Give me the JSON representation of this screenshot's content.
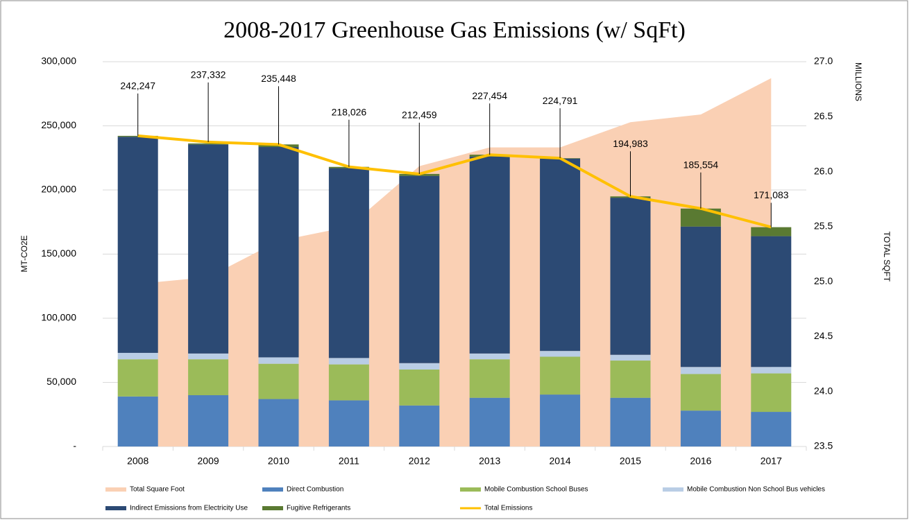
{
  "chart_data": {
    "type": "bar",
    "title": "2008-2017 Greenhouse Gas Emissions (w/ SqFt)",
    "y_axis_label": "MT-CO2E",
    "y2_axis_label": "TOTAL SQFT",
    "y2_unit_label": "MILLIONS",
    "categories": [
      "2008",
      "2009",
      "2010",
      "2011",
      "2012",
      "2013",
      "2014",
      "2015",
      "2016",
      "2017"
    ],
    "ylim": [
      0,
      300000
    ],
    "yticks": [
      {
        "value": 0,
        "label": "-"
      },
      {
        "value": 50000,
        "label": "50,000"
      },
      {
        "value": 100000,
        "label": "100,000"
      },
      {
        "value": 150000,
        "label": "150,000"
      },
      {
        "value": 200000,
        "label": "200,000"
      },
      {
        "value": 250000,
        "label": "250,000"
      },
      {
        "value": 300000,
        "label": "300,000"
      }
    ],
    "y2lim": [
      23.5,
      27.0
    ],
    "y2ticks": [
      23.5,
      {
        "value": 24,
        "label": "24.0"
      },
      24.5,
      {
        "value": 25,
        "label": "25.0"
      },
      25.5,
      {
        "value": 26,
        "label": "26.0"
      },
      26.5,
      {
        "value": 27,
        "label": "27.0"
      }
    ],
    "grid": true,
    "legend": "bottom",
    "series": [
      {
        "name": "Total Square Foot",
        "type": "area",
        "axis": "y2",
        "color": "#fad0b4",
        "values": [
          24.98,
          25.04,
          25.37,
          25.5,
          26.05,
          26.22,
          26.22,
          26.45,
          26.52,
          26.85
        ]
      },
      {
        "name": "Direct Combustion",
        "type": "bar",
        "color": "#4f81bd",
        "values": [
          39000,
          40000,
          37000,
          36000,
          32000,
          38000,
          40500,
          38000,
          28000,
          27000
        ]
      },
      {
        "name": "Mobile Combustion School Buses",
        "type": "bar",
        "color": "#9bbb59",
        "values": [
          29000,
          28000,
          27500,
          28000,
          28000,
          30000,
          29500,
          29000,
          28500,
          30000
        ]
      },
      {
        "name": "Mobile Combustion Non School Bus vehicles",
        "type": "bar",
        "color": "#b9cde5",
        "values": [
          5000,
          4500,
          5000,
          5000,
          5000,
          4500,
          4500,
          4500,
          5500,
          5000
        ]
      },
      {
        "name": "Indirect Emissions from Electricity Use",
        "type": "bar",
        "color": "#2c4a74",
        "values": [
          168500,
          163000,
          164000,
          148000,
          146000,
          153500,
          150000,
          122500,
          109500,
          102000
        ]
      },
      {
        "name": "Fugitive Refrigerants",
        "type": "bar",
        "color": "#5a7a32",
        "values": [
          700,
          800,
          2000,
          1000,
          1500,
          1500,
          300,
          1000,
          14000,
          7000
        ]
      },
      {
        "name": "Total Emissions",
        "type": "line",
        "color": "#ffc000",
        "values": [
          242247,
          237332,
          235448,
          218026,
          212459,
          227454,
          224791,
          194983,
          185554,
          171083
        ],
        "value_labels": [
          "242,247",
          "237,332",
          "235,448",
          "218,026",
          "212,459",
          "227,454",
          "224,791",
          "194,983",
          "185,554",
          "171,083"
        ]
      }
    ]
  }
}
